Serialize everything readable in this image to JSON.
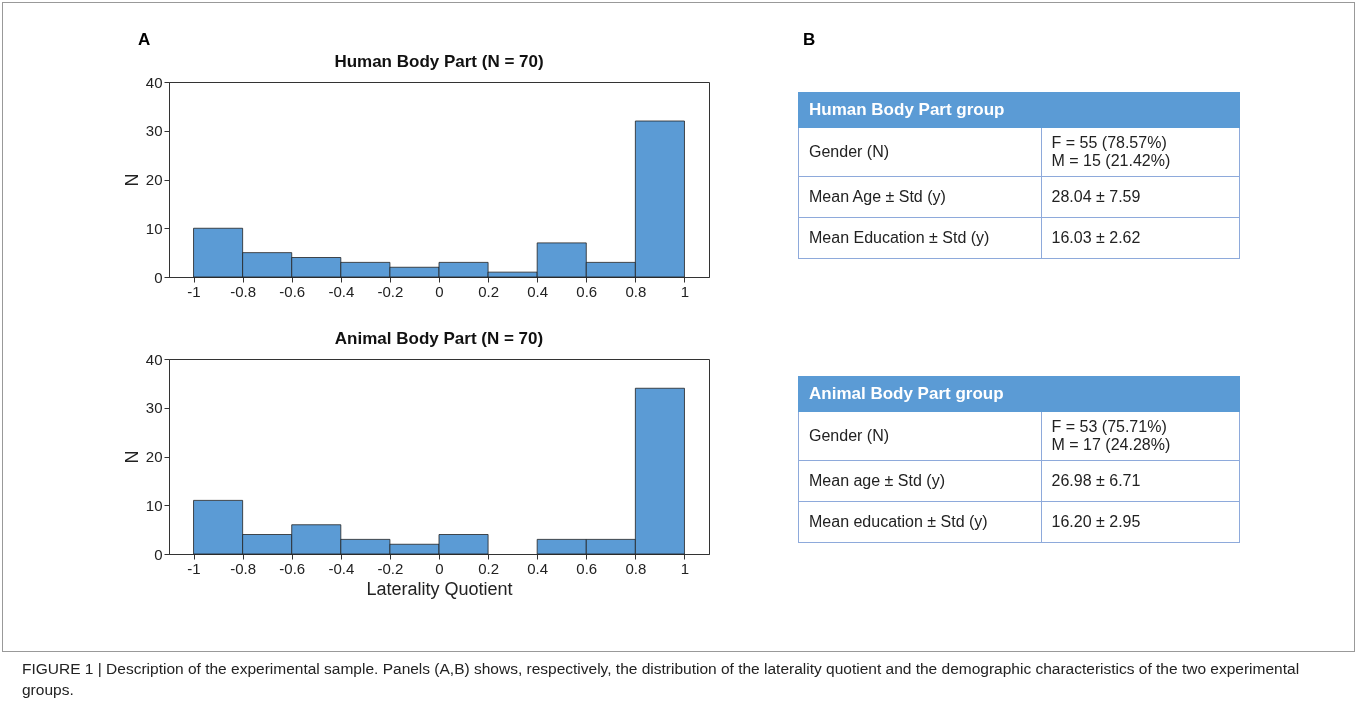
{
  "chart_data": [
    {
      "type": "histogram",
      "title": "Human Body Part (N = 70)",
      "ylabel": "N",
      "bins": [
        -1,
        -0.8,
        -0.6,
        -0.4,
        -0.2,
        0,
        0.2,
        0.4,
        0.6,
        0.8,
        1
      ],
      "values": [
        10,
        5,
        4,
        3,
        2,
        3,
        1,
        7,
        3,
        32
      ],
      "color": "#5b9bd5",
      "xlim": [
        -1.1,
        1.1
      ],
      "ylim": [
        0,
        40
      ],
      "xticks": [
        -1,
        -0.8,
        -0.6,
        -0.4,
        -0.2,
        0,
        0.2,
        0.4,
        0.6,
        0.8,
        1
      ],
      "yticks": [
        0,
        10,
        20,
        30,
        40
      ],
      "annotations": [
        "A",
        "B",
        "FIGURE 1 | Description of the experimental sample. Panels (A,B) shows, respectively, the distribution of the laterality quotient and the demographic characteristics of the two experimental groups."
      ]
    },
    {
      "type": "histogram",
      "title": "Animal Body Part (N = 70)",
      "ylabel": "N",
      "xlabel": "Laterality Quotient",
      "bins": [
        -1,
        -0.8,
        -0.6,
        -0.4,
        -0.2,
        0,
        0.2,
        0.4,
        0.6,
        0.8,
        1
      ],
      "values": [
        11,
        4,
        6,
        3,
        2,
        4,
        0,
        3,
        3,
        34
      ],
      "color": "#5b9bd5",
      "xlim": [
        -1.1,
        1.1
      ],
      "ylim": [
        0,
        40
      ],
      "xticks": [
        -1,
        -0.8,
        -0.6,
        -0.4,
        -0.2,
        0,
        0.2,
        0.4,
        0.6,
        0.8,
        1
      ],
      "yticks": [
        0,
        10,
        20,
        30,
        40
      ]
    },
    {
      "type": "other",
      "title": "Human Body Part group",
      "annotations": [
        "Gender (N)",
        "F = 55 (78.57%)\nM = 15 (21.42%)",
        "Mean Age ± Std (y)",
        "28.04 ± 7.59",
        "Mean Education ± Std  (y)",
        "16.03 ± 2.62"
      ]
    },
    {
      "type": "other",
      "title": "Animal Body Part group",
      "annotations": [
        "Gender (N)",
        "F = 53 (75.71%)\nM = 17 (24.28%)",
        "Mean age ± Std (y)",
        "26.98 ± 6.71",
        "Mean education ± Std  (y)",
        "16.20 ± 2.95"
      ]
    }
  ]
}
